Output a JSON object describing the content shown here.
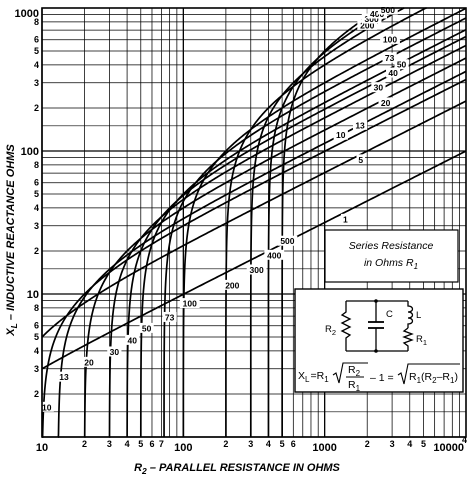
{
  "chart_data": {
    "type": "line",
    "x_scale": "log",
    "y_scale": "log",
    "xlim": [
      10,
      10000
    ],
    "ylim": [
      1,
      1000
    ],
    "grid": true,
    "xlabel_main": "R",
    "xlabel_sub": "2",
    "xlabel_rest": " – PARALLEL RESISTANCE IN OHMS",
    "ylabel_main": "X",
    "ylabel_sub": "L",
    "ylabel_rest": " – INDUCTIVE REACTANCE OHMS",
    "x_major_ticks": [
      {
        "value": 10,
        "label": "10"
      },
      {
        "value": 100,
        "label": "100"
      },
      {
        "value": 1000,
        "label": "1000"
      },
      {
        "value": 10000,
        "label": "10000"
      }
    ],
    "x_minor_ticks": [
      {
        "value": 20,
        "label": "2"
      },
      {
        "value": 30,
        "label": "3"
      },
      {
        "value": 40,
        "label": "4"
      },
      {
        "value": 50,
        "label": "5"
      },
      {
        "value": 60,
        "label": "6"
      },
      {
        "value": 70,
        "label": "7"
      },
      {
        "value": 200,
        "label": "2"
      },
      {
        "value": 300,
        "label": "3"
      },
      {
        "value": 400,
        "label": "4"
      },
      {
        "value": 500,
        "label": "5"
      },
      {
        "value": 600,
        "label": "6"
      },
      {
        "value": 2000,
        "label": "2"
      },
      {
        "value": 3000,
        "label": "3"
      },
      {
        "value": 4000,
        "label": "4"
      },
      {
        "value": 5000,
        "label": "5"
      }
    ],
    "x_end_superscript": "4",
    "y_major_ticks": [
      {
        "value": 10,
        "label": "10"
      },
      {
        "value": 100,
        "label": "100"
      },
      {
        "value": 1000,
        "label": "1000"
      }
    ],
    "y_minor_ticks": [
      {
        "value": 2,
        "label": "2"
      },
      {
        "value": 3,
        "label": "3"
      },
      {
        "value": 4,
        "label": "4"
      },
      {
        "value": 5,
        "label": "5"
      },
      {
        "value": 6,
        "label": "6"
      },
      {
        "value": 8,
        "label": "8"
      },
      {
        "value": 20,
        "label": "2"
      },
      {
        "value": 30,
        "label": "3"
      },
      {
        "value": 40,
        "label": "4"
      },
      {
        "value": 50,
        "label": "5"
      },
      {
        "value": 60,
        "label": "6"
      },
      {
        "value": 80,
        "label": "8"
      },
      {
        "value": 200,
        "label": "2"
      },
      {
        "value": 300,
        "label": "3"
      },
      {
        "value": 400,
        "label": "4"
      },
      {
        "value": 500,
        "label": "5"
      },
      {
        "value": 600,
        "label": "6"
      },
      {
        "value": 800,
        "label": "8"
      }
    ],
    "series": [
      {
        "name": "1",
        "r1": 1
      },
      {
        "name": "5",
        "r1": 5
      },
      {
        "name": "10",
        "r1": 10
      },
      {
        "name": "13",
        "r1": 13
      },
      {
        "name": "20",
        "r1": 20
      },
      {
        "name": "30",
        "r1": 30
      },
      {
        "name": "40",
        "r1": 40
      },
      {
        "name": "50",
        "r1": 50
      },
      {
        "name": "73",
        "r1": 73
      },
      {
        "name": "100",
        "r1": 100
      },
      {
        "name": "200",
        "r1": 200
      },
      {
        "name": "300",
        "r1": 300
      },
      {
        "name": "400",
        "r1": 400
      },
      {
        "name": "500",
        "r1": 500
      }
    ],
    "curve_labels_lower": [
      {
        "text": "10",
        "x": 10.8,
        "y": 1.6
      },
      {
        "text": "13",
        "x": 14.3,
        "y": 2.6
      },
      {
        "text": "20",
        "x": 21.5,
        "y": 3.3
      },
      {
        "text": "30",
        "x": 32.5,
        "y": 3.9
      },
      {
        "text": "40",
        "x": 43.5,
        "y": 4.7
      },
      {
        "text": "50",
        "x": 55,
        "y": 5.7
      },
      {
        "text": "73",
        "x": 80,
        "y": 6.8
      },
      {
        "text": "100",
        "x": 111,
        "y": 8.5
      },
      {
        "text": "200",
        "x": 222,
        "y": 11.4
      },
      {
        "text": "300",
        "x": 330,
        "y": 14.6
      },
      {
        "text": "400",
        "x": 440,
        "y": 18.5
      },
      {
        "text": "500",
        "x": 545,
        "y": 23.2
      }
    ],
    "curve_labels_upper": [
      {
        "text": "1",
        "x": 1400,
        "y": 33
      },
      {
        "text": "5",
        "x": 1800,
        "y": 86
      },
      {
        "text": "10",
        "x": 1300,
        "y": 128
      },
      {
        "text": "13",
        "x": 1780,
        "y": 150
      },
      {
        "text": "20",
        "x": 2700,
        "y": 215
      },
      {
        "text": "30",
        "x": 2400,
        "y": 275
      },
      {
        "text": "40",
        "x": 3050,
        "y": 348
      },
      {
        "text": "50",
        "x": 3500,
        "y": 398
      },
      {
        "text": "73",
        "x": 2880,
        "y": 442
      },
      {
        "text": "100",
        "x": 2900,
        "y": 598
      },
      {
        "text": "200",
        "x": 2000,
        "y": 750
      },
      {
        "text": "300",
        "x": 2150,
        "y": 830
      },
      {
        "text": "400",
        "x": 2350,
        "y": 900
      },
      {
        "text": "500",
        "x": 2800,
        "y": 960
      }
    ],
    "legend": {
      "line1": "Series Resistance",
      "line2_text": "in Ohms",
      "line2_var": "R",
      "line2_sub": "1"
    },
    "inset": {
      "label_r2": "R",
      "label_r2_sub": "2",
      "label_c": "C",
      "label_l": "L",
      "label_r1": "R",
      "label_r1_sub": "1",
      "formula_lhs": "X",
      "formula_lhs_sub": "L",
      "formula_eq": "=",
      "formula_r1": "R",
      "formula_r1_sub": "1",
      "formula_num": "R",
      "formula_num_sub": "2",
      "formula_den": "R",
      "formula_den_sub": "1",
      "formula_minus1": "– 1 =",
      "formula_rhs_r1": "R",
      "formula_rhs_r1_sub": "1",
      "formula_rhs_open": "(R",
      "formula_rhs_r2_sub": "2",
      "formula_rhs_minus": "–R",
      "formula_rhs_r1b_sub": "1",
      "formula_rhs_close": ")"
    }
  }
}
